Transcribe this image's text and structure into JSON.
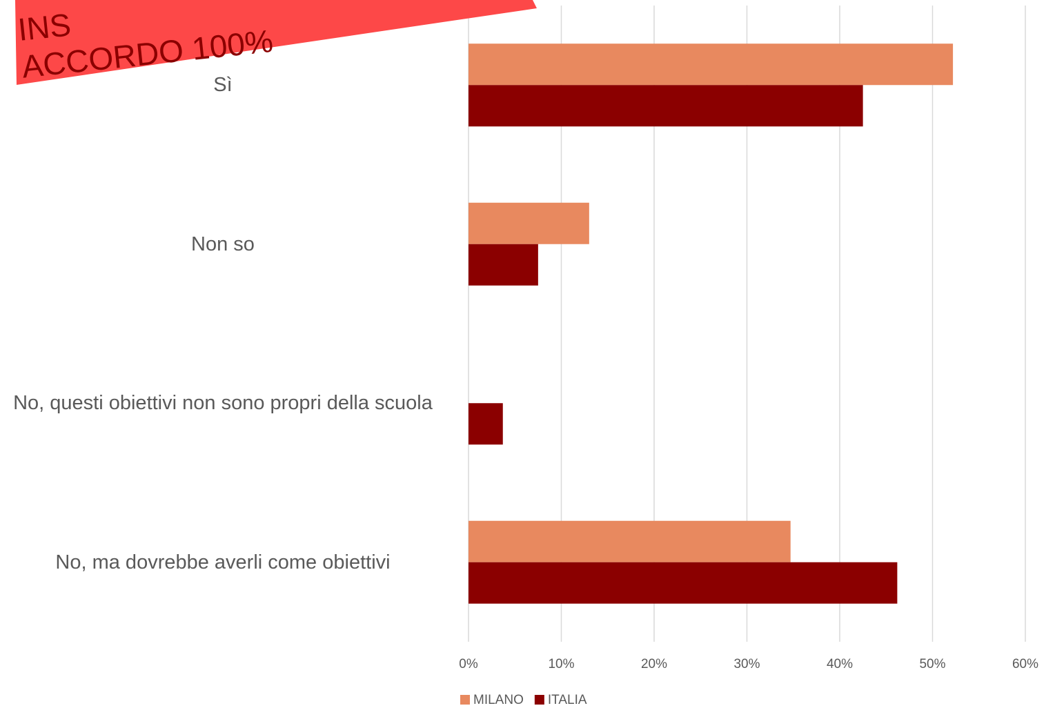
{
  "chart_data": {
    "type": "bar",
    "orientation": "horizontal",
    "annotation": [
      "INS",
      "ACCORDO 100%"
    ],
    "categories": [
      "Sì",
      "Non so",
      "No, questi obiettivi non sono propri della scuola",
      "No, ma dovrebbe averli come obiettivi"
    ],
    "series": [
      {
        "name": "MILANO",
        "color": "#e8895f",
        "values": [
          52.2,
          13,
          0,
          34.7
        ]
      },
      {
        "name": "ITALIA",
        "color": "#8b0000",
        "values": [
          42.5,
          7.5,
          3.7,
          46.2
        ]
      }
    ],
    "xlim": [
      0,
      60
    ],
    "xticks": [
      {
        "value": 0,
        "label": "0%"
      },
      {
        "value": 10,
        "label": "10%"
      },
      {
        "value": 20,
        "label": "20%"
      },
      {
        "value": 30,
        "label": "30%"
      },
      {
        "value": 40,
        "label": "40%"
      },
      {
        "value": 50,
        "label": "50%"
      },
      {
        "value": 60,
        "label": "60%"
      }
    ],
    "grid": true,
    "legend": "bottom"
  }
}
